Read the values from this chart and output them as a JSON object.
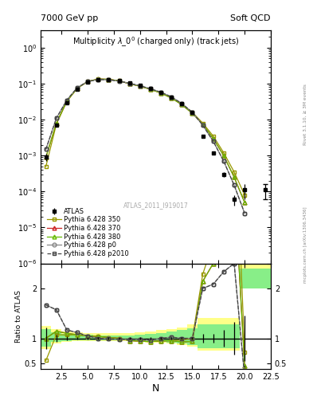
{
  "title_top_left": "7000 GeV pp",
  "title_top_right": "Soft QCD",
  "main_title": "Multiplicity $\\lambda\\_0^0$ (charged only) (track jets)",
  "watermark": "ATLAS_2011_I919017",
  "right_label_top": "Rivet 3.1.10, ≥ 3M events",
  "right_label_bot": "mcplots.cern.ch [arXiv:1306.3436]",
  "xlabel": "N",
  "ylabel_ratio": "Ratio to ATLAS",
  "xlim": [
    0.5,
    22.5
  ],
  "ylim_main": [
    1e-06,
    3.0
  ],
  "ylim_ratio": [
    0.38,
    2.5
  ],
  "atlas_x": [
    1,
    2,
    3,
    4,
    5,
    6,
    7,
    8,
    9,
    10,
    11,
    12,
    13,
    14,
    15,
    16,
    17,
    18,
    19,
    20
  ],
  "atlas_y": [
    0.0009,
    0.007,
    0.03,
    0.07,
    0.11,
    0.13,
    0.13,
    0.12,
    0.105,
    0.09,
    0.075,
    0.058,
    0.042,
    0.028,
    0.016,
    0.0035,
    0.0012,
    0.0003,
    6e-05,
    0.00011
  ],
  "atlas_yerr": [
    0.0002,
    0.0005,
    0.001,
    0.002,
    0.003,
    0.003,
    0.003,
    0.003,
    0.003,
    0.002,
    0.002,
    0.0015,
    0.001,
    0.0007,
    0.0004,
    0.0003,
    0.0001,
    5e-05,
    2e-05,
    5e-05
  ],
  "atlas_extra_x": [
    22
  ],
  "atlas_extra_y": [
    0.00011
  ],
  "atlas_extra_yerr": [
    5e-05
  ],
  "p350_x": [
    1,
    2,
    3,
    4,
    5,
    6,
    7,
    8,
    9,
    10,
    11,
    12,
    13,
    14,
    15,
    16,
    17,
    18,
    19,
    20
  ],
  "p350_y": [
    0.0005,
    0.0075,
    0.032,
    0.075,
    0.115,
    0.135,
    0.132,
    0.12,
    0.1,
    0.085,
    0.07,
    0.055,
    0.04,
    0.027,
    0.016,
    0.008,
    0.0035,
    0.0012,
    0.00035,
    8e-05
  ],
  "p370_x": [
    1,
    2,
    3,
    4,
    5,
    6,
    7,
    8,
    9,
    10,
    11,
    12,
    13,
    14,
    15,
    16,
    17,
    18,
    19,
    20
  ],
  "p370_y": [
    0.0009,
    0.008,
    0.033,
    0.075,
    0.115,
    0.135,
    0.132,
    0.12,
    0.1,
    0.085,
    0.07,
    0.055,
    0.04,
    0.026,
    0.015,
    0.0075,
    0.003,
    0.001,
    0.00025,
    5e-05
  ],
  "p380_x": [
    1,
    2,
    3,
    4,
    5,
    6,
    7,
    8,
    9,
    10,
    11,
    12,
    13,
    14,
    15,
    16,
    17,
    18,
    19,
    20
  ],
  "p380_y": [
    0.0009,
    0.008,
    0.033,
    0.075,
    0.115,
    0.135,
    0.132,
    0.12,
    0.1,
    0.085,
    0.07,
    0.055,
    0.04,
    0.026,
    0.015,
    0.0075,
    0.003,
    0.001,
    0.00025,
    5e-05
  ],
  "pp0_x": [
    1,
    2,
    3,
    4,
    5,
    6,
    7,
    8,
    9,
    10,
    11,
    12,
    13,
    14,
    15,
    16,
    17,
    18,
    19,
    20
  ],
  "pp0_y": [
    0.0015,
    0.011,
    0.035,
    0.078,
    0.115,
    0.13,
    0.128,
    0.118,
    0.102,
    0.088,
    0.072,
    0.058,
    0.043,
    0.028,
    0.016,
    0.007,
    0.0025,
    0.0007,
    0.00015,
    2.5e-05
  ],
  "pp2010_x": [
    1,
    2,
    3,
    4,
    5,
    6,
    7,
    8,
    9,
    10,
    11,
    12,
    13,
    14,
    15,
    16,
    17,
    18,
    19,
    20
  ],
  "pp2010_y": [
    0.0015,
    0.011,
    0.035,
    0.078,
    0.115,
    0.13,
    0.128,
    0.118,
    0.102,
    0.088,
    0.072,
    0.058,
    0.043,
    0.028,
    0.016,
    0.007,
    0.0025,
    0.0007,
    0.00015,
    2.5e-05
  ],
  "color_atlas": "#000000",
  "color_p350": "#999900",
  "color_p370": "#cc2222",
  "color_p380": "#66bb00",
  "color_p0": "#888888",
  "color_p2010": "#444444",
  "color_yellow_band": "#ffff88",
  "color_green_band": "#88ee88"
}
